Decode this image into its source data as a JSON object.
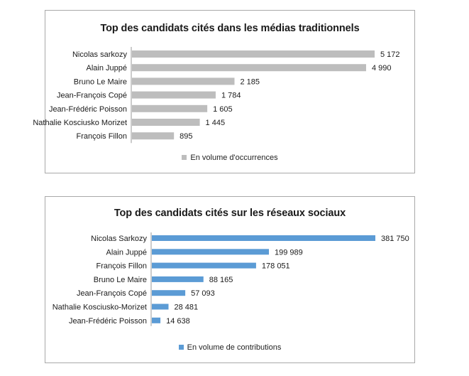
{
  "chart_data": [
    {
      "type": "bar",
      "orientation": "horizontal",
      "title": "Top des candidats cités dans les médias traditionnels",
      "categories": [
        "Nicolas sarkozy",
        "Alain Juppé",
        "Bruno Le Maire",
        "Jean-François Copé",
        "Jean-Frédéric Poisson",
        "Nathalie Kosciusko Morizet",
        "François Fillon"
      ],
      "series": [
        {
          "name": "En volume d'occurrences",
          "values": [
            5172,
            4990,
            2185,
            1784,
            1605,
            1445,
            895
          ],
          "labels": [
            "5 172",
            "4 990",
            "2 185",
            "1 784",
            "1 605",
            "1 445",
            "895"
          ]
        }
      ],
      "xlim": [
        0,
        5172
      ],
      "color": "#bdbdbd",
      "legend": "bottom",
      "grid": false
    },
    {
      "type": "bar",
      "orientation": "horizontal",
      "title": "Top des candidats cités sur les réseaux sociaux",
      "categories": [
        "Nicolas Sarkozy",
        "Alain Juppé",
        "François Fillon",
        "Bruno Le Maire",
        "Jean-François Copé",
        "Nathalie Kosciusko-Morizet",
        "Jean-Frédéric Poisson"
      ],
      "series": [
        {
          "name": "En volume de contributions",
          "values": [
            381750,
            199989,
            178051,
            88165,
            57093,
            28481,
            14638
          ],
          "labels": [
            "381 750",
            "199 989",
            "178 051",
            "88 165",
            "57 093",
            "28 481",
            "14 638"
          ]
        }
      ],
      "xlim": [
        0,
        381750
      ],
      "color": "#5b9bd5",
      "legend": "bottom",
      "grid": false
    }
  ]
}
